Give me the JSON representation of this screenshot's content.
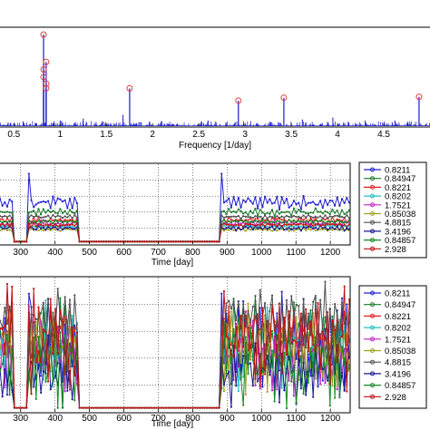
{
  "chart_data": [
    {
      "type": "line",
      "xlabel": "Frequency  [1/day]",
      "ylabel": "",
      "xlim": [
        0.35,
        5.0
      ],
      "ylim": [
        0,
        1
      ],
      "x_ticks": [
        "0.5",
        "1",
        "1.5",
        "2",
        "2.5",
        "3",
        "3.5",
        "4",
        "4.5"
      ],
      "x_tick_values": [
        0.5,
        1,
        1.5,
        2,
        2.5,
        3,
        3.5,
        4,
        4.5
      ],
      "grid": false,
      "colors": {
        "line": "#1a1acc",
        "marker": "#e0403a"
      },
      "peaks": [
        {
          "x": 0.8211,
          "y": 0.97
        },
        {
          "x": 0.8221,
          "y": 0.6
        },
        {
          "x": 0.8202,
          "y": 0.52
        },
        {
          "x": 0.84947,
          "y": 0.68
        },
        {
          "x": 0.85038,
          "y": 0.45
        },
        {
          "x": 0.84857,
          "y": 0.4
        },
        {
          "x": 1.7521,
          "y": 0.4
        },
        {
          "x": 2.928,
          "y": 0.27
        },
        {
          "x": 3.4196,
          "y": 0.3
        },
        {
          "x": 4.8815,
          "y": 0.31
        }
      ],
      "baseline_spikes": [
        {
          "x": 0.6,
          "y": 0.05
        },
        {
          "x": 1.0,
          "y": 0.06
        },
        {
          "x": 1.25,
          "y": 0.08
        },
        {
          "x": 1.68,
          "y": 0.12
        },
        {
          "x": 2.1,
          "y": 0.05
        },
        {
          "x": 2.6,
          "y": 0.06
        },
        {
          "x": 3.62,
          "y": 0.07
        },
        {
          "x": 3.95,
          "y": 0.09
        },
        {
          "x": 4.3,
          "y": 0.06
        },
        {
          "x": 4.62,
          "y": 0.06
        }
      ]
    },
    {
      "type": "line",
      "xlabel": "Time  [day]",
      "ylabel": "",
      "xlim": [
        240,
        1255
      ],
      "x_ticks": [
        "300",
        "400",
        "500",
        "600",
        "700",
        "800",
        "900",
        "1000",
        "1100",
        "1200"
      ],
      "x_tick_values": [
        300,
        400,
        500,
        600,
        700,
        800,
        900,
        1000,
        1100,
        1200
      ],
      "grid": true,
      "gaps": [
        [
          280,
          320
        ],
        [
          465,
          880
        ]
      ],
      "legend_position": "right",
      "series": [
        {
          "name": "0.8211",
          "color": "#2020d0",
          "marker": "+",
          "level": 0.52,
          "amp": 0.08
        },
        {
          "name": "0.84947",
          "color": "#1a7a2a",
          "marker": "o",
          "level": 0.4,
          "amp": 0.04
        },
        {
          "name": "0.8221",
          "color": "#e02020",
          "marker": "*",
          "level": 0.3,
          "amp": 0.03
        },
        {
          "name": "0.8202",
          "color": "#20c0c0",
          "marker": "x",
          "level": 0.22,
          "amp": 0.02
        },
        {
          "name": "1.7521",
          "color": "#c020c0",
          "marker": "+",
          "level": 0.26,
          "amp": 0.03
        },
        {
          "name": "0.85038",
          "color": "#a0a020",
          "marker": "o",
          "level": 0.18,
          "amp": 0.02
        },
        {
          "name": "4.8815",
          "color": "#505050",
          "marker": "*",
          "level": 0.34,
          "amp": 0.02
        },
        {
          "name": "3.4196",
          "color": "#1a1a90",
          "marker": "x",
          "level": 0.2,
          "amp": 0.03
        },
        {
          "name": "0.84857",
          "color": "#138a20",
          "marker": "+",
          "level": 0.28,
          "amp": 0.02
        },
        {
          "name": "2.928",
          "color": "#c01010",
          "marker": "*",
          "level": 0.24,
          "amp": 0.02
        }
      ]
    },
    {
      "type": "line",
      "xlabel": "Time  [day]",
      "ylabel": "",
      "xlim": [
        240,
        1255
      ],
      "x_ticks": [
        "300",
        "400",
        "500",
        "600",
        "700",
        "800",
        "900",
        "1000",
        "1100",
        "1200"
      ],
      "x_tick_values": [
        300,
        400,
        500,
        600,
        700,
        800,
        900,
        1000,
        1100,
        1200
      ],
      "grid": true,
      "gaps": [
        [
          280,
          320
        ],
        [
          465,
          880
        ]
      ],
      "legend_position": "right",
      "series": [
        {
          "name": "0.8211",
          "color": "#2020d0",
          "marker": "+",
          "level": 0.5,
          "amp": 0.35
        },
        {
          "name": "0.84947",
          "color": "#1a7a2a",
          "marker": "o",
          "level": 0.55,
          "amp": 0.3
        },
        {
          "name": "0.8221",
          "color": "#e02020",
          "marker": "*",
          "level": 0.62,
          "amp": 0.2
        },
        {
          "name": "0.8202",
          "color": "#20c0c0",
          "marker": "x",
          "level": 0.5,
          "amp": 0.3
        },
        {
          "name": "1.7521",
          "color": "#c020c0",
          "marker": "+",
          "level": 0.4,
          "amp": 0.25
        },
        {
          "name": "0.85038",
          "color": "#a0a020",
          "marker": "o",
          "level": 0.45,
          "amp": 0.3
        },
        {
          "name": "4.8815",
          "color": "#505050",
          "marker": "*",
          "level": 0.72,
          "amp": 0.25
        },
        {
          "name": "3.4196",
          "color": "#1a1a90",
          "marker": "x",
          "level": 0.3,
          "amp": 0.25
        },
        {
          "name": "0.84857",
          "color": "#138a20",
          "marker": "+",
          "level": 0.35,
          "amp": 0.3
        },
        {
          "name": "2.928",
          "color": "#c01010",
          "marker": "*",
          "level": 0.55,
          "amp": 0.35
        }
      ]
    }
  ]
}
